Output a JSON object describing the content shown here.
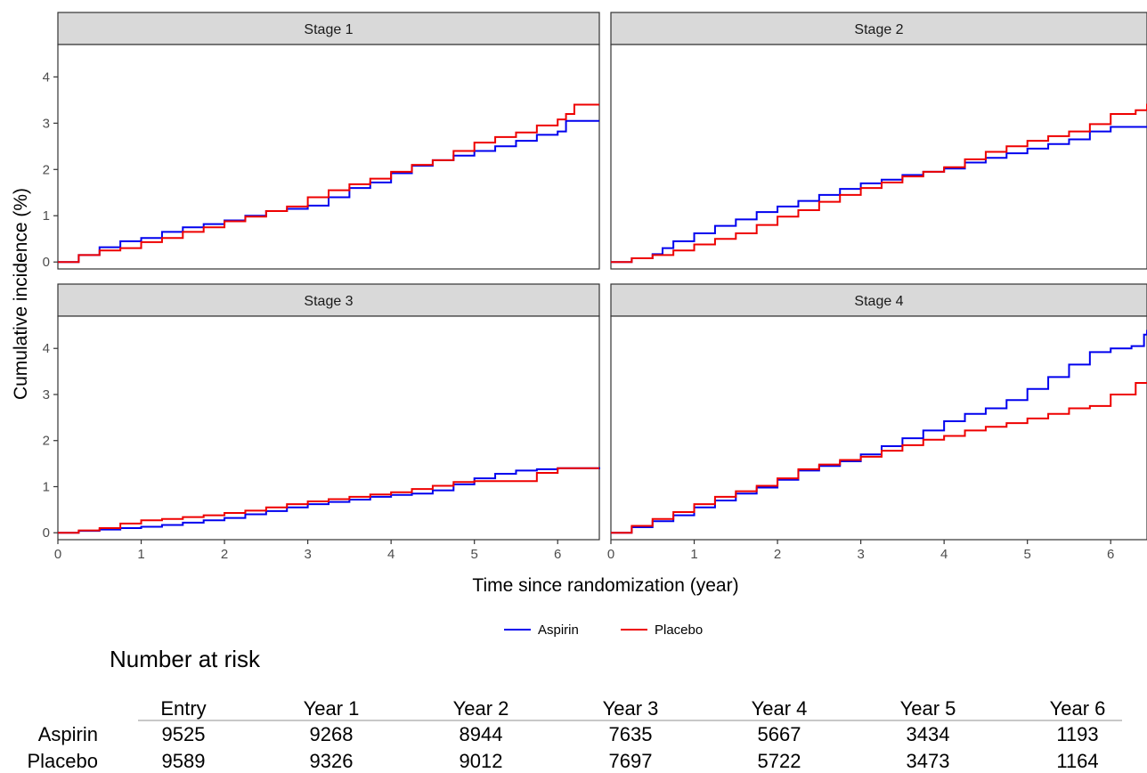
{
  "chart_data": {
    "type": "line",
    "layout": "2x2 facets",
    "ylabel": "Cumulative incidence (%)",
    "xlabel": "Time since randomization (year)",
    "xlim": [
      0,
      6.5
    ],
    "ylim": [
      0,
      4.7
    ],
    "xticks": [
      0,
      1,
      2,
      3,
      4,
      5,
      6
    ],
    "yticks": [
      0,
      1,
      2,
      3,
      4
    ],
    "grid": false,
    "legend_position": "bottom",
    "colors": {
      "Aspirin": "#0000ee",
      "Placebo": "#ee0000"
    },
    "legend": [
      "Aspirin",
      "Placebo"
    ],
    "panels": [
      {
        "title": "Stage 1",
        "series": [
          {
            "name": "Aspirin",
            "x": [
              0,
              0.25,
              0.5,
              0.75,
              1.0,
              1.25,
              1.5,
              1.75,
              2.0,
              2.25,
              2.5,
              2.75,
              3.0,
              3.25,
              3.5,
              3.75,
              4.0,
              4.25,
              4.5,
              4.75,
              5.0,
              5.25,
              5.5,
              5.75,
              6.0,
              6.1,
              6.5
            ],
            "y": [
              0,
              0.15,
              0.32,
              0.45,
              0.52,
              0.65,
              0.75,
              0.82,
              0.9,
              1.0,
              1.1,
              1.15,
              1.22,
              1.4,
              1.6,
              1.72,
              1.92,
              2.08,
              2.2,
              2.3,
              2.4,
              2.5,
              2.62,
              2.75,
              2.82,
              3.05,
              3.05
            ]
          },
          {
            "name": "Placebo",
            "x": [
              0,
              0.25,
              0.5,
              0.75,
              1.0,
              1.25,
              1.5,
              1.75,
              2.0,
              2.25,
              2.5,
              2.75,
              3.0,
              3.25,
              3.5,
              3.75,
              4.0,
              4.25,
              4.5,
              4.75,
              5.0,
              5.25,
              5.5,
              5.75,
              6.0,
              6.1,
              6.2,
              6.5
            ],
            "y": [
              0,
              0.15,
              0.25,
              0.3,
              0.43,
              0.52,
              0.65,
              0.75,
              0.88,
              0.98,
              1.1,
              1.2,
              1.4,
              1.55,
              1.68,
              1.8,
              1.95,
              2.1,
              2.2,
              2.4,
              2.58,
              2.7,
              2.8,
              2.95,
              3.08,
              3.2,
              3.4,
              3.4
            ]
          }
        ]
      },
      {
        "title": "Stage 2",
        "series": [
          {
            "name": "Aspirin",
            "x": [
              0,
              0.25,
              0.5,
              0.62,
              0.75,
              1.0,
              1.25,
              1.5,
              1.75,
              2.0,
              2.25,
              2.5,
              2.75,
              3.0,
              3.25,
              3.5,
              3.75,
              4.0,
              4.25,
              4.5,
              4.75,
              5.0,
              5.25,
              5.5,
              5.75,
              6.0,
              6.5
            ],
            "y": [
              0,
              0.08,
              0.17,
              0.3,
              0.45,
              0.62,
              0.78,
              0.92,
              1.08,
              1.2,
              1.32,
              1.45,
              1.58,
              1.7,
              1.78,
              1.88,
              1.95,
              2.02,
              2.15,
              2.25,
              2.35,
              2.45,
              2.55,
              2.65,
              2.82,
              2.92,
              2.92
            ]
          },
          {
            "name": "Placebo",
            "x": [
              0,
              0.25,
              0.5,
              0.75,
              1.0,
              1.25,
              1.5,
              1.75,
              2.0,
              2.25,
              2.5,
              2.75,
              3.0,
              3.25,
              3.5,
              3.75,
              4.0,
              4.25,
              4.5,
              4.75,
              5.0,
              5.25,
              5.5,
              5.75,
              6.0,
              6.3,
              6.5
            ],
            "y": [
              0,
              0.08,
              0.15,
              0.25,
              0.38,
              0.5,
              0.62,
              0.8,
              0.98,
              1.12,
              1.3,
              1.45,
              1.6,
              1.72,
              1.85,
              1.95,
              2.05,
              2.22,
              2.38,
              2.5,
              2.62,
              2.72,
              2.82,
              2.98,
              3.2,
              3.28,
              3.42
            ]
          }
        ]
      },
      {
        "title": "Stage 3",
        "series": [
          {
            "name": "Aspirin",
            "x": [
              0,
              0.25,
              0.5,
              0.75,
              1.0,
              1.25,
              1.5,
              1.75,
              2.0,
              2.25,
              2.5,
              2.75,
              3.0,
              3.25,
              3.5,
              3.75,
              4.0,
              4.25,
              4.5,
              4.75,
              5.0,
              5.25,
              5.5,
              5.75,
              6.0,
              6.5
            ],
            "y": [
              0,
              0.04,
              0.07,
              0.1,
              0.13,
              0.17,
              0.22,
              0.27,
              0.32,
              0.4,
              0.47,
              0.55,
              0.62,
              0.67,
              0.72,
              0.78,
              0.82,
              0.85,
              0.92,
              1.05,
              1.18,
              1.28,
              1.35,
              1.38,
              1.4,
              1.42
            ]
          },
          {
            "name": "Placebo",
            "x": [
              0,
              0.25,
              0.5,
              0.75,
              1.0,
              1.25,
              1.5,
              1.75,
              2.0,
              2.25,
              2.5,
              2.75,
              3.0,
              3.25,
              3.5,
              3.75,
              4.0,
              4.25,
              4.5,
              4.75,
              5.0,
              5.25,
              5.5,
              5.75,
              6.0,
              6.5
            ],
            "y": [
              0,
              0.05,
              0.1,
              0.2,
              0.27,
              0.3,
              0.34,
              0.38,
              0.43,
              0.48,
              0.55,
              0.62,
              0.68,
              0.73,
              0.78,
              0.83,
              0.88,
              0.95,
              1.02,
              1.1,
              1.12,
              1.12,
              1.12,
              1.3,
              1.4,
              1.4
            ]
          }
        ]
      },
      {
        "title": "Stage 4",
        "series": [
          {
            "name": "Aspirin",
            "x": [
              0,
              0.25,
              0.5,
              0.75,
              1.0,
              1.25,
              1.5,
              1.75,
              2.0,
              2.25,
              2.5,
              2.75,
              3.0,
              3.25,
              3.5,
              3.75,
              4.0,
              4.25,
              4.5,
              4.75,
              5.0,
              5.25,
              5.5,
              5.75,
              6.0,
              6.25,
              6.4,
              6.5
            ],
            "y": [
              0,
              0.12,
              0.25,
              0.38,
              0.55,
              0.7,
              0.85,
              0.98,
              1.15,
              1.35,
              1.45,
              1.55,
              1.7,
              1.88,
              2.05,
              2.22,
              2.42,
              2.58,
              2.7,
              2.88,
              3.12,
              3.38,
              3.65,
              3.92,
              4.0,
              4.05,
              4.3,
              4.4
            ]
          },
          {
            "name": "Placebo",
            "x": [
              0,
              0.25,
              0.5,
              0.75,
              1.0,
              1.25,
              1.5,
              1.75,
              2.0,
              2.25,
              2.5,
              2.75,
              3.0,
              3.25,
              3.5,
              3.75,
              4.0,
              4.25,
              4.5,
              4.75,
              5.0,
              5.25,
              5.5,
              5.75,
              6.0,
              6.3,
              6.5
            ],
            "y": [
              0,
              0.15,
              0.3,
              0.45,
              0.62,
              0.78,
              0.9,
              1.02,
              1.18,
              1.38,
              1.48,
              1.58,
              1.65,
              1.78,
              1.9,
              2.02,
              2.1,
              2.22,
              2.3,
              2.38,
              2.48,
              2.58,
              2.7,
              2.75,
              3.0,
              3.25,
              3.25
            ]
          }
        ]
      }
    ]
  },
  "risk_table": {
    "title": "Number at risk",
    "columns": [
      "Entry",
      "Year 1",
      "Year 2",
      "Year 3",
      "Year 4",
      "Year 5",
      "Year 6"
    ],
    "rows": [
      {
        "label": "Aspirin",
        "values": [
          "9525",
          "9268",
          "8944",
          "7635",
          "5667",
          "3434",
          "1193"
        ]
      },
      {
        "label": "Placebo",
        "values": [
          "9589",
          "9326",
          "9012",
          "7697",
          "5722",
          "3473",
          "1164"
        ]
      }
    ]
  }
}
